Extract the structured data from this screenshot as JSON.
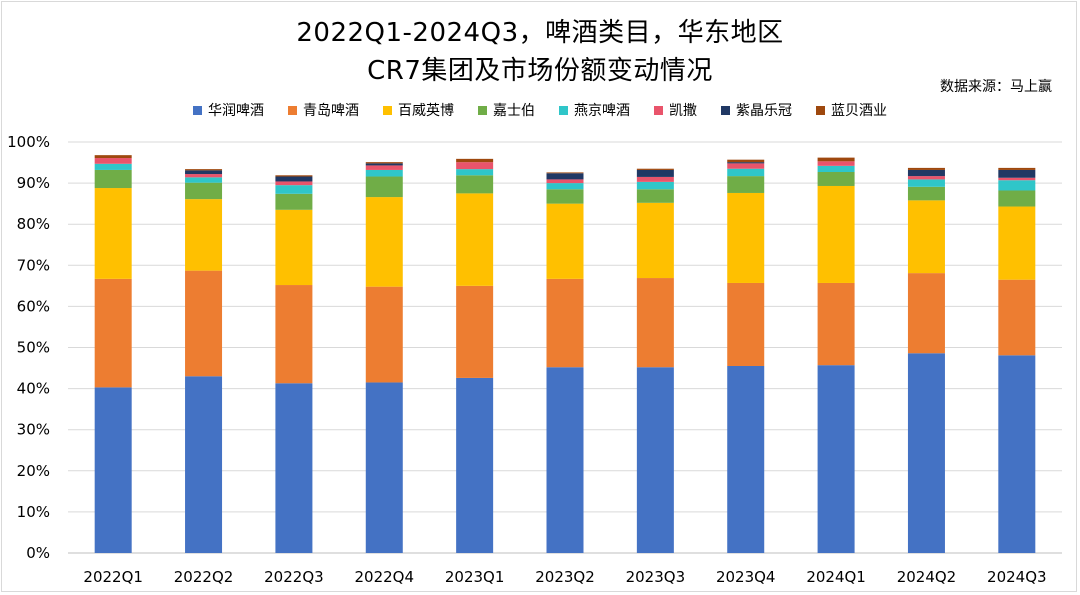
{
  "chart_data": {
    "type": "bar",
    "stacked": true,
    "title": "2022Q1-2024Q3，啤酒类目，华东地区",
    "subtitle": "CR7集团及市场份额变动情况",
    "source": "数据来源：马上赢",
    "xlabel": "",
    "ylabel": "",
    "ylim": [
      0,
      100
    ],
    "y_ticks": [
      "0%",
      "10%",
      "20%",
      "30%",
      "40%",
      "50%",
      "60%",
      "70%",
      "80%",
      "90%",
      "100%"
    ],
    "grid": true,
    "legend_position": "top",
    "categories": [
      "2022Q1",
      "2022Q2",
      "2022Q3",
      "2022Q4",
      "2023Q1",
      "2023Q2",
      "2023Q3",
      "2023Q4",
      "2024Q1",
      "2024Q2",
      "2024Q3"
    ],
    "series": [
      {
        "name": "华润啤酒",
        "color": "#4472C4",
        "values": [
          40.3,
          43.0,
          41.3,
          41.5,
          42.6,
          45.2,
          45.2,
          45.5,
          45.7,
          48.6,
          48.1
        ]
      },
      {
        "name": "青岛啤酒",
        "color": "#ED7D31",
        "values": [
          26.4,
          25.7,
          23.9,
          23.3,
          22.4,
          21.5,
          21.7,
          20.2,
          20.0,
          19.5,
          18.4
        ]
      },
      {
        "name": "百威英博",
        "color": "#FFC000",
        "values": [
          22.1,
          17.4,
          18.3,
          21.8,
          22.5,
          18.3,
          18.3,
          21.9,
          23.6,
          17.7,
          17.8
        ]
      },
      {
        "name": "嘉士伯",
        "color": "#70AD47",
        "values": [
          4.4,
          4.0,
          3.9,
          5.0,
          4.4,
          3.5,
          3.3,
          4.1,
          3.4,
          3.3,
          3.9
        ]
      },
      {
        "name": "燕京啤酒",
        "color": "#2FC6C9",
        "values": [
          1.5,
          1.3,
          2.1,
          1.6,
          1.5,
          1.5,
          1.8,
          1.8,
          1.5,
          1.8,
          2.5
        ]
      },
      {
        "name": "凯撒",
        "color": "#E9546B",
        "values": [
          1.4,
          0.8,
          0.9,
          1.1,
          1.7,
          0.9,
          1.2,
          1.3,
          1.1,
          0.8,
          0.6
        ]
      },
      {
        "name": "紫晶乐冠",
        "color": "#203864",
        "values": [
          0.0,
          0.9,
          1.2,
          0.5,
          0.0,
          1.5,
          1.7,
          0.3,
          0.0,
          1.5,
          1.9
        ]
      },
      {
        "name": "蓝贝酒业",
        "color": "#9E480E",
        "values": [
          0.7,
          0.3,
          0.3,
          0.3,
          0.8,
          0.2,
          0.3,
          0.6,
          0.9,
          0.5,
          0.5
        ]
      }
    ]
  }
}
